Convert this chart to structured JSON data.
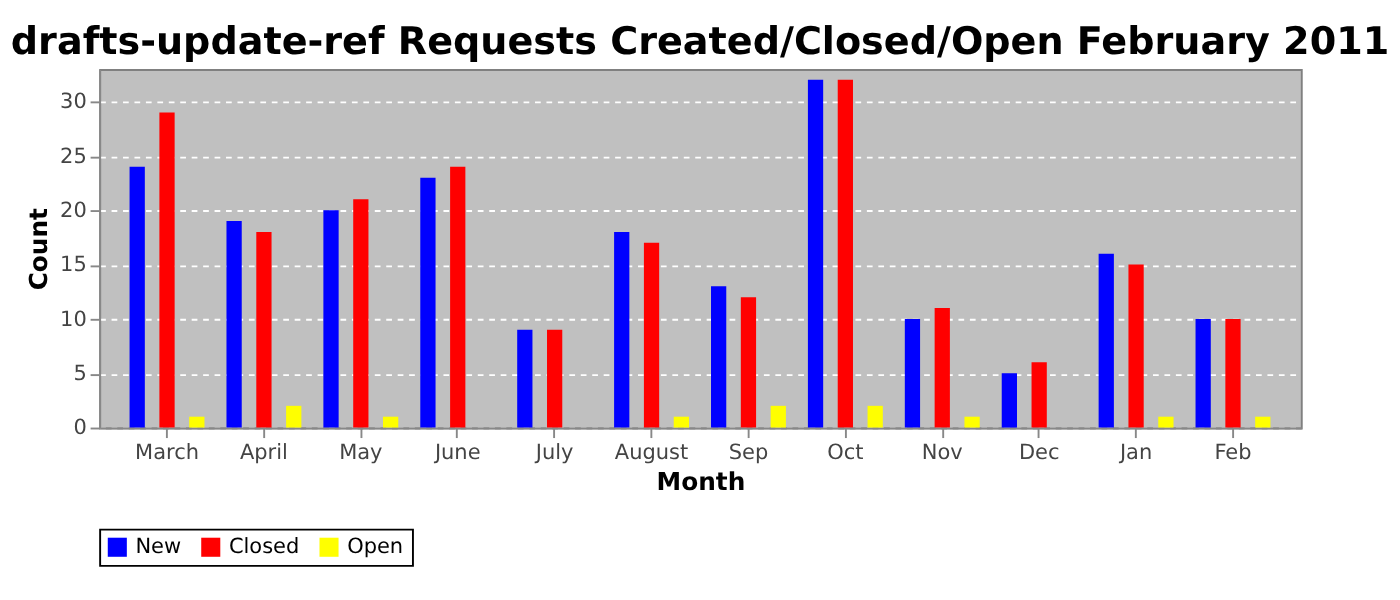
{
  "chart_data": {
    "type": "bar",
    "title": "drafts-update-ref Requests Created/Closed/Open February 2011",
    "xlabel": "Month",
    "ylabel": "Count",
    "categories": [
      "March",
      "April",
      "May",
      "June",
      "July",
      "August",
      "Sep",
      "Oct",
      "Nov",
      "Dec",
      "Jan",
      "Feb"
    ],
    "series": [
      {
        "name": "New",
        "color": "#0000ff",
        "values": [
          24,
          19,
          20,
          23,
          9,
          18,
          13,
          32,
          10,
          5,
          16,
          10
        ]
      },
      {
        "name": "Closed",
        "color": "#ff0000",
        "values": [
          29,
          18,
          21,
          24,
          9,
          17,
          12,
          32,
          11,
          6,
          15,
          10
        ]
      },
      {
        "name": "Open",
        "color": "#ffff00",
        "values": [
          1,
          2,
          1,
          0,
          0,
          1,
          2,
          2,
          1,
          0,
          1,
          1
        ]
      }
    ],
    "ylim": [
      0,
      33
    ],
    "yticks": [
      0,
      5,
      10,
      15,
      20,
      25,
      30
    ],
    "grid": "y",
    "legend": "bottom"
  }
}
